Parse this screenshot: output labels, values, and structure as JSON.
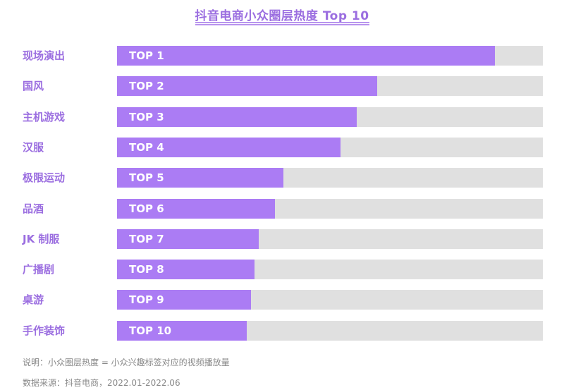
{
  "header": {
    "title": "抖音电商小众圈层热度 Top 10"
  },
  "colors": {
    "bar": "#ab7cf4",
    "track": "#e0e0e0",
    "label": "#9b6ee0"
  },
  "footer": {
    "note": "说明：小众圈层热度 = 小众兴趣标签对应的视频播放量",
    "source": "数据来源：抖音电商，2022.01-2022.06"
  },
  "chart_data": {
    "type": "bar",
    "orientation": "horizontal",
    "title": "抖音电商小众圈层热度 Top 10",
    "xlabel": "",
    "ylabel": "",
    "categories": [
      "现场演出",
      "国风",
      "主机游戏",
      "汉服",
      "极限运动",
      "品酒",
      "JK 制服",
      "广播剧",
      "桌游",
      "手作装饰"
    ],
    "bar_labels": [
      "TOP 1",
      "TOP 2",
      "TOP 3",
      "TOP 4",
      "TOP 5",
      "TOP 6",
      "TOP 7",
      "TOP 8",
      "TOP 9",
      "TOP 10"
    ],
    "values": [
      88.7,
      61.1,
      56.3,
      52.5,
      39.1,
      37.1,
      33.3,
      32.3,
      31.5,
      30.5
    ],
    "value_unit": "relative % of track (no axis shown)",
    "xlim": [
      0,
      100
    ],
    "grid": false,
    "legend": "none"
  }
}
